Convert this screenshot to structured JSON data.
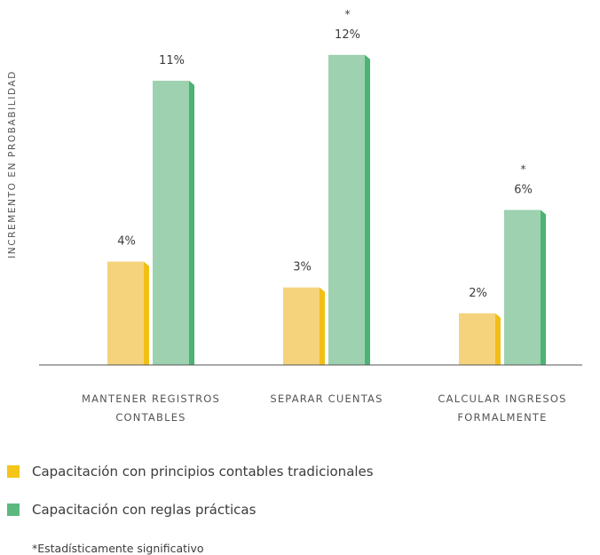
{
  "chart_data": {
    "type": "bar",
    "ylabel": "INCREMENTO EN PROBABILIDAD",
    "xlabel": "",
    "ylim": [
      0,
      12
    ],
    "grid": false,
    "legend_position": "bottom-left",
    "categories": [
      [
        "MANTENER REGISTROS",
        "CONTABLES"
      ],
      [
        "SEPARAR CUENTAS"
      ],
      [
        "CALCULAR INGRESOS",
        "FORMALMENTE"
      ]
    ],
    "series": [
      {
        "name": "Capacitación con principios contables tradicionales",
        "values": [
          4,
          3,
          2
        ],
        "labels": [
          "4%",
          "3%",
          "2%"
        ],
        "significant": [
          false,
          false,
          false
        ],
        "color": "#f5d37c",
        "side_color": "#f2bf17"
      },
      {
        "name": "Capacitación con reglas prácticas",
        "values": [
          11,
          12,
          6
        ],
        "labels": [
          "11%",
          "12%",
          "6%"
        ],
        "significant": [
          false,
          true,
          true
        ],
        "color": "#9dd1b0",
        "side_color": "#4bb374"
      }
    ],
    "significance_marker": "*"
  },
  "legend": {
    "items": [
      {
        "label": "Capacitación con principios contables tradicionales",
        "color": "#f5c518"
      },
      {
        "label": "Capacitación con reglas prácticas",
        "color": "#5cb87e"
      }
    ]
  },
  "footnote": "*Estadísticamente significativo"
}
